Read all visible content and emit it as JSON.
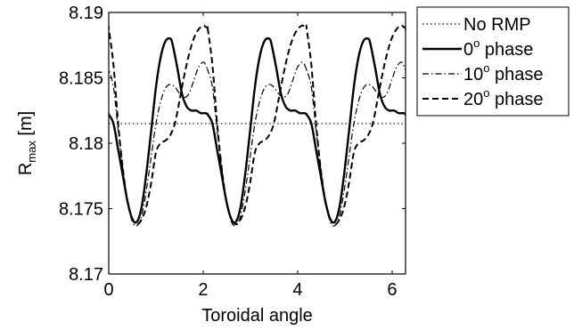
{
  "chart_data": {
    "type": "line",
    "xlabel": "Toroidal angle",
    "ylabel_main": "R",
    "ylabel_sub": "max",
    "ylabel_unit": " [m]",
    "xlim": [
      0,
      6.2832
    ],
    "ylim": [
      8.17,
      8.19
    ],
    "xticks": [
      0,
      2,
      4,
      6
    ],
    "xtick_labels": [
      "0",
      "2",
      "4",
      "6"
    ],
    "yticks": [
      8.17,
      8.175,
      8.18,
      8.185,
      8.19
    ],
    "ytick_labels": [
      "8.17",
      "8.175",
      "8.18",
      "8.185",
      "8.19"
    ],
    "grid": false,
    "legend_position": "outside-right",
    "series": [
      {
        "name": "No RMP",
        "legend_base": "No RMP",
        "legend_sup": "",
        "legend_suffix": "",
        "dash": "1.5,3",
        "width": 1.2,
        "color": "#000000",
        "x": [
          0,
          6.2832
        ],
        "y": [
          8.1815,
          8.1815
        ]
      },
      {
        "name": "0° phase",
        "legend_base": "0",
        "legend_sup": "o",
        "legend_suffix": " phase",
        "dash": "",
        "width": 2.4,
        "color": "#000000",
        "x": [
          0,
          0.1,
          0.2,
          0.3,
          0.4,
          0.5,
          0.6,
          0.7,
          0.8,
          0.9,
          1.0,
          1.1,
          1.2,
          1.3,
          1.35,
          1.45,
          1.55,
          1.65,
          1.75,
          1.85,
          1.95,
          2.05,
          2.094
        ],
        "y": [
          8.1822,
          8.1815,
          8.1795,
          8.1775,
          8.1755,
          8.1742,
          8.174,
          8.1752,
          8.1778,
          8.181,
          8.1843,
          8.1866,
          8.1878,
          8.188,
          8.1876,
          8.1858,
          8.1838,
          8.1828,
          8.1825,
          8.1825,
          8.1823,
          8.1823,
          8.1822
        ]
      },
      {
        "name": "10° phase",
        "legend_base": "10",
        "legend_sup": "o",
        "legend_suffix": " phase",
        "dash": "7,3,1.5,3",
        "width": 1.2,
        "color": "#000000",
        "x": [
          0,
          0.1,
          0.2,
          0.3,
          0.4,
          0.5,
          0.6,
          0.7,
          0.8,
          0.9,
          1.0,
          1.1,
          1.2,
          1.3,
          1.4,
          1.5,
          1.6,
          1.7,
          1.8,
          1.9,
          2.0,
          2.05,
          2.094
        ],
        "y": [
          8.1856,
          8.1843,
          8.181,
          8.178,
          8.1755,
          8.174,
          8.1737,
          8.1745,
          8.1765,
          8.179,
          8.1815,
          8.1832,
          8.1842,
          8.1845,
          8.1843,
          8.1838,
          8.1835,
          8.1838,
          8.1848,
          8.1858,
          8.1862,
          8.186,
          8.1856
        ]
      },
      {
        "name": "20° phase",
        "legend_base": "20",
        "legend_sup": "o",
        "legend_suffix": " phase",
        "dash": "7,4",
        "width": 2.0,
        "color": "#000000",
        "x": [
          0,
          0.1,
          0.2,
          0.3,
          0.4,
          0.5,
          0.6,
          0.7,
          0.8,
          0.9,
          1.0,
          1.1,
          1.2,
          1.3,
          1.4,
          1.5,
          1.6,
          1.7,
          1.8,
          1.9,
          2.0,
          2.05,
          2.094
        ],
        "y": [
          8.1888,
          8.186,
          8.1815,
          8.178,
          8.1755,
          8.1742,
          8.1738,
          8.1742,
          8.1752,
          8.177,
          8.1793,
          8.18,
          8.1802,
          8.1806,
          8.1815,
          8.1833,
          8.1852,
          8.1868,
          8.188,
          8.1887,
          8.189,
          8.1889,
          8.1888
        ]
      }
    ]
  }
}
